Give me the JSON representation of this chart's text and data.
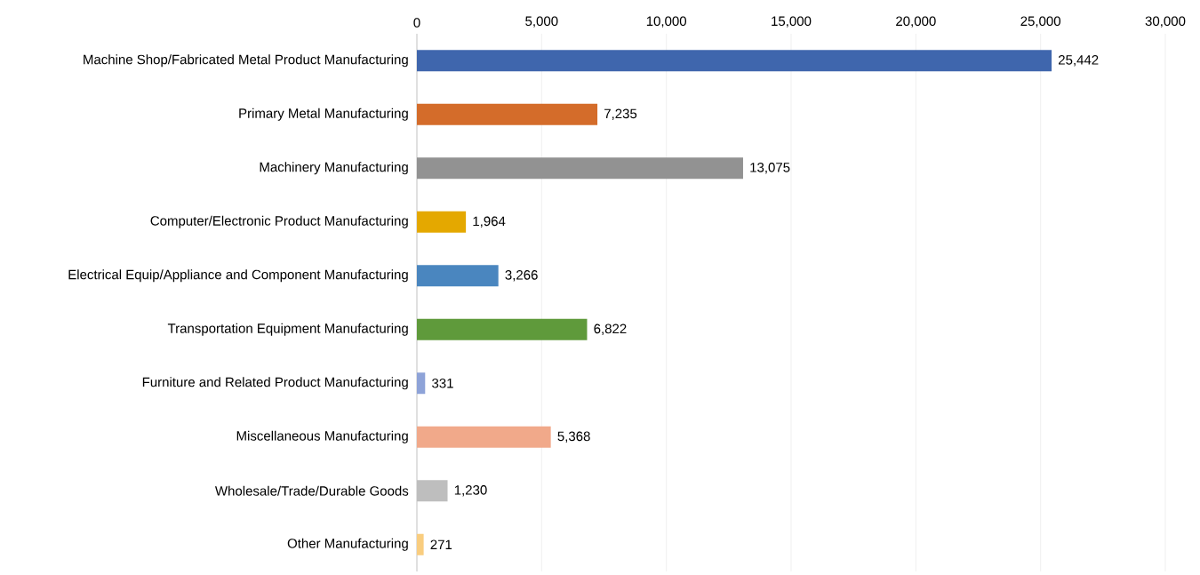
{
  "chart_data": {
    "type": "bar",
    "orientation": "horizontal",
    "categories": [
      "Machine Shop/Fabricated Metal Product Manufacturing",
      "Primary Metal Manufacturing",
      "Machinery Manufacturing",
      "Computer/Electronic Product Manufacturing",
      "Electrical Equip/Appliance and Component Manufacturing",
      "Transportation Equipment Manufacturing",
      "Furniture and Related Product Manufacturing",
      "Miscellaneous Manufacturing",
      "Wholesale/Trade/Durable Goods",
      "Other Manufacturing"
    ],
    "values": [
      25442,
      7235,
      13075,
      1964,
      3266,
      6822,
      331,
      5368,
      1230,
      271
    ],
    "value_labels": [
      "25,442",
      "7,235",
      "13,075",
      "1,964",
      "3,266",
      "6,822",
      "331",
      "5,368",
      "1,230",
      "271"
    ],
    "colors": [
      "#3f66ad",
      "#d46c2a",
      "#929292",
      "#e4a800",
      "#4a86bf",
      "#5f9a3b",
      "#8ea3d8",
      "#f1a98a",
      "#bebebe",
      "#f9cd7f"
    ],
    "xlim": [
      0,
      30000
    ],
    "xticks": [
      0,
      {
        "value": 5000,
        "label": "5,000"
      },
      {
        "value": 10000,
        "label": "10,000"
      },
      {
        "value": 15000,
        "label": "15,000"
      },
      {
        "value": 20000,
        "label": "20,000"
      },
      {
        "value": 25000,
        "label": "25,000"
      },
      {
        "value": 30000,
        "label": "30,000"
      }
    ],
    "grid": "x"
  }
}
